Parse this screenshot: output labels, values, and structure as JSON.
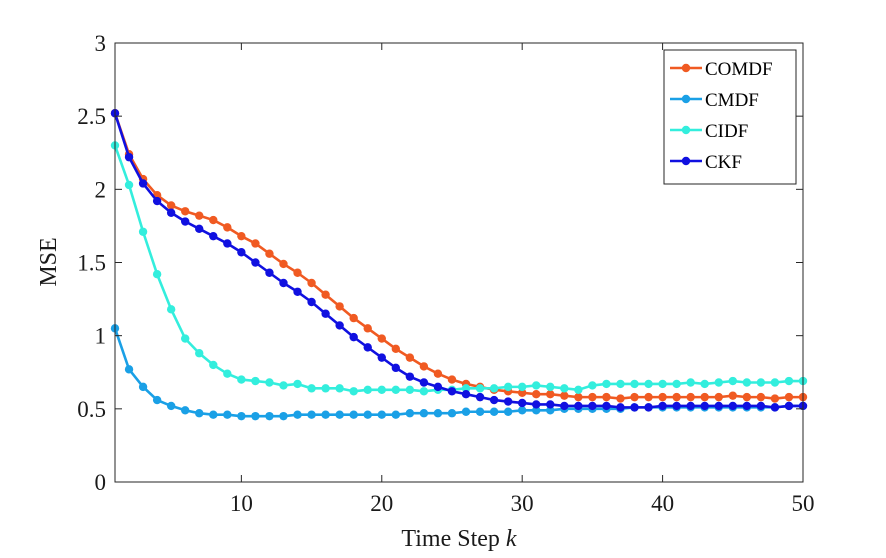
{
  "chart_data": {
    "type": "line",
    "title": "",
    "xlabel_text": "Time Step ",
    "xlabel_var": "k",
    "ylabel": "MSE",
    "xlim": [
      1,
      50
    ],
    "ylim": [
      0,
      3
    ],
    "xticks": [
      10,
      20,
      30,
      40,
      50
    ],
    "yticks": [
      0,
      0.5,
      1,
      1.5,
      2,
      2.5,
      3
    ],
    "ytick_labels": [
      "0",
      "0.5",
      "1",
      "1.5",
      "2",
      "2.5",
      "3"
    ],
    "xtick_labels": [
      "10",
      "20",
      "30",
      "40",
      "50"
    ],
    "grid": false,
    "legend_position": "top-right",
    "x": [
      1,
      2,
      3,
      4,
      5,
      6,
      7,
      8,
      9,
      10,
      11,
      12,
      13,
      14,
      15,
      16,
      17,
      18,
      19,
      20,
      21,
      22,
      23,
      24,
      25,
      26,
      27,
      28,
      29,
      30,
      31,
      32,
      33,
      34,
      35,
      36,
      37,
      38,
      39,
      40,
      41,
      42,
      43,
      44,
      45,
      46,
      47,
      48,
      49,
      50
    ],
    "series": [
      {
        "name": "COMDF",
        "color": "#f05a22",
        "values": [
          2.52,
          2.24,
          2.07,
          1.96,
          1.89,
          1.85,
          1.82,
          1.79,
          1.74,
          1.68,
          1.63,
          1.56,
          1.49,
          1.43,
          1.36,
          1.28,
          1.2,
          1.12,
          1.05,
          0.98,
          0.91,
          0.85,
          0.79,
          0.74,
          0.7,
          0.67,
          0.65,
          0.63,
          0.62,
          0.61,
          0.6,
          0.6,
          0.59,
          0.58,
          0.58,
          0.58,
          0.57,
          0.58,
          0.58,
          0.58,
          0.58,
          0.58,
          0.58,
          0.58,
          0.59,
          0.58,
          0.58,
          0.57,
          0.58,
          0.58
        ]
      },
      {
        "name": "CMDF",
        "color": "#1aa0e6",
        "values": [
          1.05,
          0.77,
          0.65,
          0.56,
          0.52,
          0.49,
          0.47,
          0.46,
          0.46,
          0.45,
          0.45,
          0.45,
          0.45,
          0.46,
          0.46,
          0.46,
          0.46,
          0.46,
          0.46,
          0.46,
          0.46,
          0.47,
          0.47,
          0.47,
          0.47,
          0.48,
          0.48,
          0.48,
          0.48,
          0.49,
          0.49,
          0.49,
          0.5,
          0.5,
          0.5,
          0.5,
          0.5,
          0.51,
          0.51,
          0.51,
          0.51,
          0.51,
          0.51,
          0.51,
          0.51,
          0.51,
          0.51,
          0.51,
          0.52,
          0.52
        ]
      },
      {
        "name": "CIDF",
        "color": "#33eedd",
        "values": [
          2.3,
          2.03,
          1.71,
          1.42,
          1.18,
          0.98,
          0.88,
          0.8,
          0.74,
          0.7,
          0.69,
          0.68,
          0.66,
          0.67,
          0.64,
          0.64,
          0.64,
          0.62,
          0.63,
          0.63,
          0.63,
          0.63,
          0.62,
          0.63,
          0.63,
          0.64,
          0.64,
          0.64,
          0.65,
          0.65,
          0.66,
          0.65,
          0.64,
          0.63,
          0.66,
          0.67,
          0.67,
          0.67,
          0.67,
          0.67,
          0.67,
          0.68,
          0.67,
          0.68,
          0.69,
          0.68,
          0.68,
          0.68,
          0.69,
          0.69
        ]
      },
      {
        "name": "CKF",
        "color": "#1010e0",
        "values": [
          2.52,
          2.22,
          2.04,
          1.92,
          1.84,
          1.78,
          1.73,
          1.68,
          1.63,
          1.57,
          1.5,
          1.43,
          1.36,
          1.3,
          1.23,
          1.15,
          1.07,
          0.99,
          0.92,
          0.85,
          0.78,
          0.72,
          0.68,
          0.65,
          0.62,
          0.6,
          0.58,
          0.56,
          0.55,
          0.54,
          0.53,
          0.53,
          0.52,
          0.52,
          0.52,
          0.52,
          0.51,
          0.51,
          0.51,
          0.52,
          0.52,
          0.52,
          0.52,
          0.52,
          0.52,
          0.52,
          0.52,
          0.51,
          0.52,
          0.52
        ]
      }
    ]
  }
}
